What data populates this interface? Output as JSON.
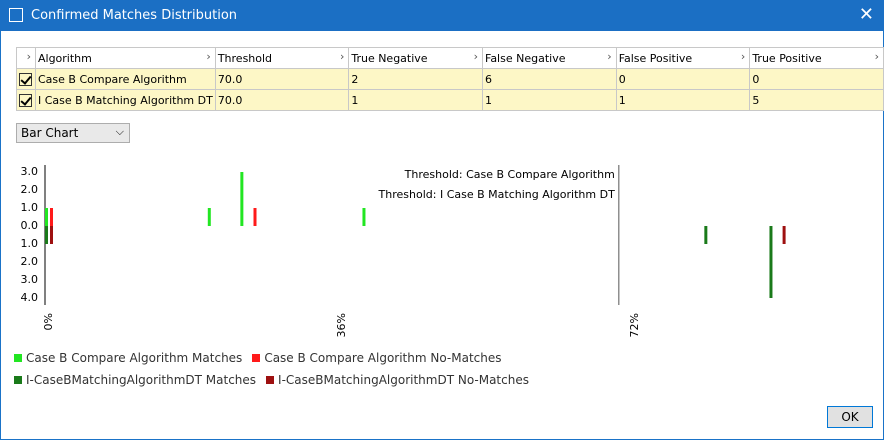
{
  "window": {
    "title": "Confirmed Matches Distribution",
    "ok_button": "OK"
  },
  "table": {
    "columns": [
      "Algorithm",
      "Threshold",
      "True Negative",
      "False Negative",
      "False Positive",
      "True Positive"
    ],
    "rows": [
      [
        "Case B Compare Algorithm",
        "70.0",
        "2",
        "6",
        "0",
        "0"
      ],
      [
        "I Case B Matching Algorithm DT",
        "70.0",
        "1",
        "1",
        "1",
        "5"
      ]
    ]
  },
  "chart_selector": "Bar Chart",
  "chart_data": {
    "type": "bar",
    "xlim": [
      0,
      100
    ],
    "xticks": [
      {
        "value": 0,
        "label": "0%"
      },
      {
        "value": 36,
        "label": "36%"
      },
      {
        "value": 72,
        "label": "72%"
      }
    ],
    "ylim": [
      -4,
      3
    ],
    "yticks": [
      {
        "value": 3,
        "label": "3.0"
      },
      {
        "value": 2,
        "label": "2.0"
      },
      {
        "value": 1,
        "label": "1.0"
      },
      {
        "value": 0,
        "label": "0.0"
      },
      {
        "value": -1,
        "label": "1.0"
      },
      {
        "value": -2,
        "label": "2.0"
      },
      {
        "value": -3,
        "label": "3.0"
      },
      {
        "value": -4,
        "label": "4.0"
      }
    ],
    "annotations": [
      {
        "x": 70,
        "text": "Threshold: Case B Compare Algorithm"
      },
      {
        "x": 70,
        "text": "Threshold: I Case B Matching Algorithm DT"
      }
    ],
    "series": [
      {
        "name": "Case B Compare Algorithm Matches",
        "color": "#22e622",
        "x": [
          0,
          20,
          24,
          39
        ],
        "values": [
          1,
          1,
          3,
          1
        ]
      },
      {
        "name": "Case B Compare Algorithm No-Matches",
        "color": "#ff1a1a",
        "x": [
          0,
          25
        ],
        "values": [
          1,
          1
        ]
      },
      {
        "name": "I-CaseBMatchingAlgorithmDT Matches",
        "color": "#1a7a1a",
        "x": [
          0,
          81,
          89
        ],
        "values": [
          -1,
          -1,
          -4
        ]
      },
      {
        "name": "I-CaseBMatchingAlgorithmDT No-Matches",
        "color": "#9e1010",
        "x": [
          0,
          90
        ],
        "values": [
          -1,
          -1
        ]
      }
    ]
  }
}
